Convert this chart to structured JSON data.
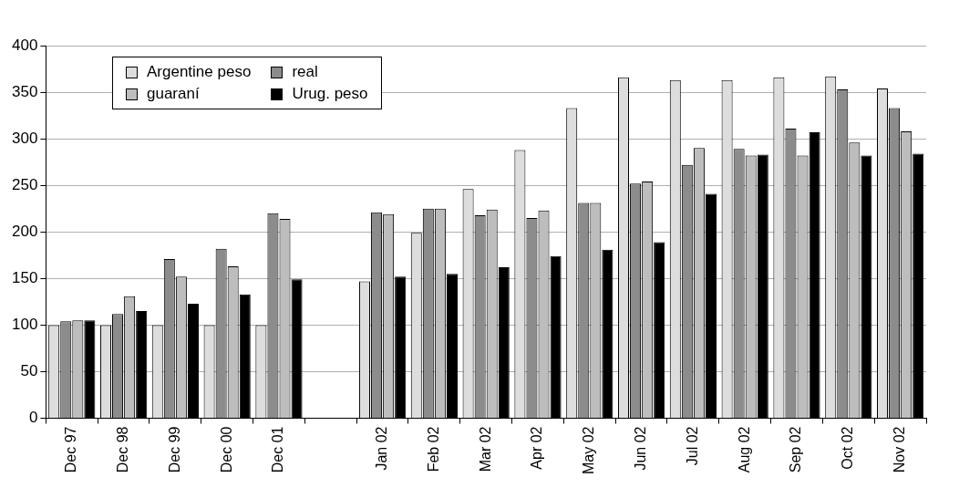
{
  "chart_data": {
    "type": "bar",
    "categories": [
      "Dec 97",
      "Dec 98",
      "Dec 99",
      "Dec 00",
      "Dec 01",
      null,
      "Jan 02",
      "Feb 02",
      "Mar 02",
      "Apr 02",
      "May 02",
      "Jun 02",
      "Jul 02",
      "Aug 02",
      "Sep 02",
      "Oct 02",
      "Nov 02"
    ],
    "series": [
      {
        "name": "Argentine peso",
        "color": "#dddddd",
        "values": [
          100,
          100,
          100,
          100,
          100,
          null,
          147,
          199,
          246,
          288,
          333,
          366,
          363,
          363,
          366,
          367,
          354
        ]
      },
      {
        "name": "real",
        "color": "#8c8c8c",
        "values": [
          104,
          112,
          171,
          182,
          220,
          null,
          221,
          225,
          218,
          215,
          231,
          252,
          272,
          289,
          311,
          353,
          333
        ]
      },
      {
        "name": "guaraní",
        "color": "#bdbdbd",
        "values": [
          105,
          131,
          152,
          163,
          214,
          null,
          219,
          225,
          224,
          223,
          231,
          254,
          290,
          282,
          282,
          296,
          308
        ]
      },
      {
        "name": "Urug. peso",
        "color": "#000000",
        "values": [
          105,
          115,
          123,
          133,
          149,
          null,
          152,
          155,
          162,
          174,
          181,
          189,
          241,
          283,
          307,
          282,
          284
        ]
      }
    ],
    "ylim": [
      0,
      400
    ],
    "yticks": [
      0,
      50,
      100,
      150,
      200,
      250,
      300,
      350,
      400
    ],
    "grid": "y",
    "legend": "top left"
  }
}
